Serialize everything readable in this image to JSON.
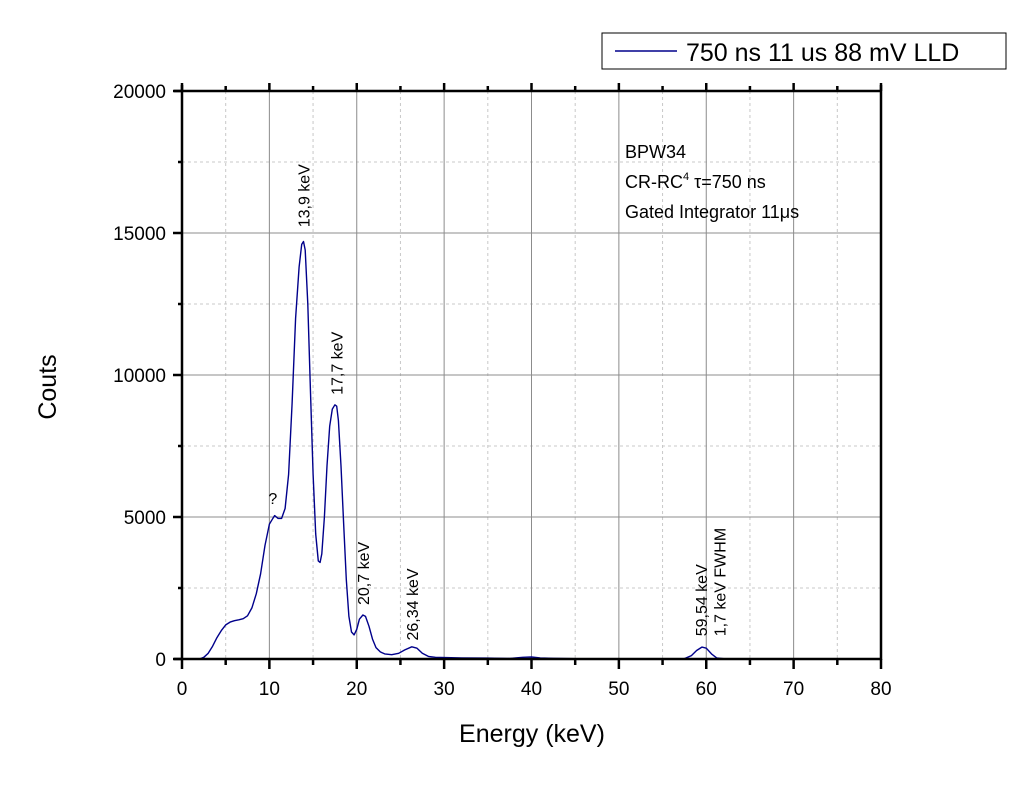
{
  "chart_data": {
    "type": "line",
    "title": "",
    "xlabel": "Energy (keV)",
    "ylabel": "Couts",
    "xlim": [
      0,
      80
    ],
    "ylim": [
      0,
      20000
    ],
    "xticks": [
      0,
      10,
      20,
      30,
      40,
      50,
      60,
      70,
      80
    ],
    "xtick_labels": [
      "0",
      "10",
      "20",
      "30",
      "40",
      "50",
      "60",
      "70",
      "80"
    ],
    "xminor_step": 5,
    "yticks": [
      0,
      5000,
      10000,
      15000,
      20000
    ],
    "ytick_labels": [
      "0",
      "5000",
      "10000",
      "15000",
      "20000"
    ],
    "yminor_step": 2500,
    "grid": true,
    "legend": {
      "placement": "top-right (outside plot)",
      "entries": [
        {
          "label": "750 ns 11 us 88 mV LLD",
          "color": "#00008b"
        }
      ]
    },
    "series": [
      {
        "name": "750 ns 11 us 88 mV LLD",
        "color": "#00008b",
        "x": [
          0,
          2.0,
          2.5,
          3.0,
          3.5,
          4.0,
          4.5,
          5.0,
          5.5,
          6.0,
          6.5,
          7.0,
          7.5,
          8.0,
          8.5,
          9.0,
          9.5,
          10.0,
          10.3,
          10.6,
          11.0,
          11.4,
          11.8,
          12.2,
          12.6,
          13.0,
          13.4,
          13.7,
          13.9,
          14.1,
          14.4,
          14.7,
          15.0,
          15.3,
          15.6,
          15.8,
          16.0,
          16.3,
          16.6,
          16.9,
          17.2,
          17.5,
          17.7,
          17.9,
          18.2,
          18.5,
          18.8,
          19.1,
          19.4,
          19.7,
          20.0,
          20.3,
          20.7,
          21.0,
          21.4,
          21.8,
          22.2,
          22.7,
          23.2,
          24.0,
          24.8,
          25.5,
          26.3,
          26.9,
          27.5,
          28.2,
          29.0,
          32.0,
          35.0,
          37.5,
          39.0,
          40.0,
          41.0,
          42.5,
          45.0,
          50.0,
          55.0,
          57.5,
          58.3,
          58.9,
          59.5,
          60.0,
          60.6,
          61.2,
          62.0,
          66.0,
          70.0,
          71.0
        ],
        "values": [
          0,
          0,
          60,
          200,
          450,
          750,
          1000,
          1200,
          1300,
          1350,
          1380,
          1420,
          1520,
          1800,
          2300,
          3000,
          4000,
          4750,
          4900,
          5050,
          4950,
          4950,
          5300,
          6500,
          9000,
          12000,
          13800,
          14600,
          14700,
          14400,
          12500,
          9500,
          6500,
          4400,
          3450,
          3400,
          3700,
          5000,
          6800,
          8200,
          8800,
          8950,
          8900,
          8400,
          6800,
          4800,
          2800,
          1500,
          950,
          850,
          1050,
          1400,
          1550,
          1500,
          1150,
          700,
          400,
          250,
          180,
          150,
          200,
          320,
          430,
          380,
          200,
          90,
          60,
          40,
          30,
          20,
          60,
          70,
          40,
          25,
          10,
          5,
          5,
          10,
          120,
          300,
          420,
          380,
          180,
          40,
          10,
          5,
          0,
          0
        ]
      }
    ],
    "annotations": [
      {
        "text": "13,9 keV",
        "x": 13.9,
        "y": 15200,
        "rotation": "vertical"
      },
      {
        "text": "17,7 keV",
        "x": 17.7,
        "y": 9300,
        "rotation": "vertical"
      },
      {
        "text": "20,7 keV",
        "x": 20.7,
        "y": 1900,
        "rotation": "vertical"
      },
      {
        "text": "26,34 keV",
        "x": 26.34,
        "y": 650,
        "rotation": "vertical"
      },
      {
        "text": "59,54 keV",
        "x": 59.4,
        "y": 800,
        "rotation": "vertical"
      },
      {
        "text": "1,7 keV FWHM",
        "x": 61.5,
        "y": 800,
        "rotation": "vertical"
      },
      {
        "text": "?",
        "x": 10.4,
        "y": 5450,
        "rotation": "horizontal"
      }
    ],
    "info_box": {
      "line1": "BPW34",
      "line2_prefix": "CR-RC",
      "line2_superscript": "4",
      "line2_suffix": " τ=750 ns",
      "line3": "Gated Integrator 11μs"
    }
  }
}
